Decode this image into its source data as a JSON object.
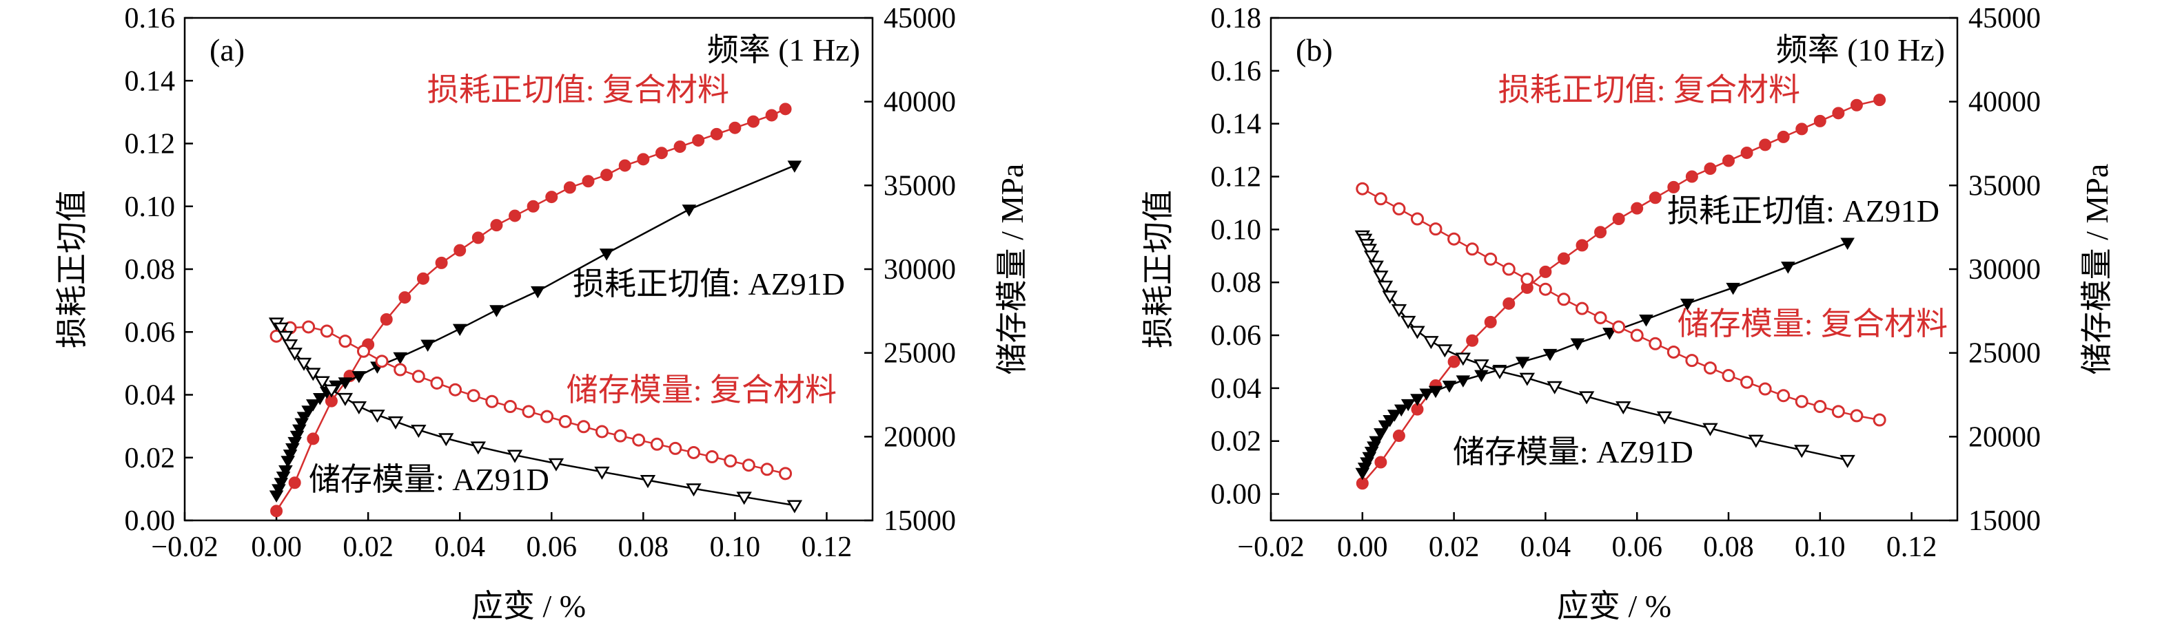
{
  "figure": {
    "x_label": "应变 / %",
    "y_left_label": "损耗正切值",
    "y_right_label": "储存模量 / MPa"
  },
  "colors": {
    "axis": "#000000",
    "composite": "#d62f2f",
    "az91d": "#000000"
  },
  "chart_data": [
    {
      "type": "line",
      "panel_label": "(a)",
      "frequency_label": "频率 (1 Hz)",
      "xlabel": "应变 / %",
      "ylabel": "损耗正切值",
      "y2label": "储存模量 / MPa",
      "xlim": [
        -0.02,
        0.13
      ],
      "ylim": [
        0,
        0.16
      ],
      "y2lim": [
        15000,
        45000
      ],
      "x_ticks": [
        "−0.02",
        "0.00",
        "0.02",
        "0.04",
        "0.06",
        "0.08",
        "0.10",
        "0.12"
      ],
      "y_ticks": [
        "0.00",
        "0.02",
        "0.04",
        "0.06",
        "0.08",
        "0.10",
        "0.12",
        "0.14",
        "0.16"
      ],
      "y2_ticks": [
        "15000",
        "20000",
        "25000",
        "30000",
        "35000",
        "40000",
        "45000"
      ],
      "series": [
        {
          "name": "损耗正切值: 复合材料",
          "axis": "left",
          "marker": "filled-circle",
          "color": "#d62f2f",
          "x": [
            0.0,
            0.004,
            0.008,
            0.012,
            0.016,
            0.02,
            0.024,
            0.028,
            0.032,
            0.036,
            0.04,
            0.044,
            0.048,
            0.052,
            0.056,
            0.06,
            0.064,
            0.068,
            0.072,
            0.076,
            0.08,
            0.084,
            0.088,
            0.092,
            0.096,
            0.1,
            0.104,
            0.108,
            0.111
          ],
          "y": [
            0.003,
            0.012,
            0.026,
            0.038,
            0.046,
            0.056,
            0.064,
            0.071,
            0.077,
            0.082,
            0.086,
            0.09,
            0.094,
            0.097,
            0.1,
            0.103,
            0.106,
            0.108,
            0.11,
            0.113,
            0.115,
            0.117,
            0.119,
            0.121,
            0.123,
            0.125,
            0.127,
            0.129,
            0.131
          ]
        },
        {
          "name": "损耗正切值: AZ91D",
          "axis": "left",
          "marker": "filled-triangle-down",
          "color": "#000000",
          "x": [
            0.0,
            0.0005,
            0.001,
            0.0015,
            0.002,
            0.0025,
            0.003,
            0.0035,
            0.004,
            0.0045,
            0.005,
            0.0055,
            0.006,
            0.007,
            0.008,
            0.0095,
            0.011,
            0.013,
            0.015,
            0.018,
            0.022,
            0.027,
            0.033,
            0.04,
            0.048,
            0.057,
            0.072,
            0.09,
            0.113
          ],
          "y": [
            0.008,
            0.01,
            0.012,
            0.014,
            0.016,
            0.019,
            0.021,
            0.023,
            0.025,
            0.027,
            0.029,
            0.031,
            0.033,
            0.035,
            0.037,
            0.039,
            0.041,
            0.043,
            0.044,
            0.046,
            0.049,
            0.052,
            0.056,
            0.061,
            0.067,
            0.073,
            0.085,
            0.099,
            0.113
          ]
        },
        {
          "name": "储存模量: 复合材料",
          "axis": "right",
          "marker": "open-circle",
          "color": "#d62f2f",
          "x": [
            0.0,
            0.003,
            0.007,
            0.011,
            0.015,
            0.019,
            0.023,
            0.027,
            0.031,
            0.035,
            0.039,
            0.043,
            0.047,
            0.051,
            0.055,
            0.059,
            0.063,
            0.067,
            0.071,
            0.075,
            0.079,
            0.083,
            0.087,
            0.091,
            0.095,
            0.099,
            0.103,
            0.107,
            0.111
          ],
          "y": [
            26000,
            26500,
            26550,
            26300,
            25700,
            25100,
            24500,
            24000,
            23600,
            23200,
            22800,
            22450,
            22100,
            21800,
            21500,
            21200,
            20900,
            20600,
            20300,
            20050,
            19800,
            19550,
            19300,
            19050,
            18800,
            18550,
            18300,
            18050,
            17800
          ]
        },
        {
          "name": "储存模量: AZ91D",
          "axis": "right",
          "marker": "open-triangle-down",
          "color": "#000000",
          "x": [
            0.0,
            0.001,
            0.002,
            0.003,
            0.004,
            0.006,
            0.008,
            0.01,
            0.012,
            0.015,
            0.018,
            0.022,
            0.026,
            0.031,
            0.037,
            0.044,
            0.052,
            0.061,
            0.071,
            0.081,
            0.091,
            0.102,
            0.113
          ],
          "y": [
            26800,
            26500,
            26000,
            25500,
            25000,
            24400,
            23800,
            23300,
            22800,
            22300,
            21800,
            21300,
            20900,
            20400,
            19900,
            19400,
            18900,
            18400,
            17900,
            17400,
            16900,
            16400,
            15900
          ]
        }
      ],
      "annotations": [
        "损耗正切值: 复合材料",
        "损耗正切值: AZ91D",
        "储存模量: 复合材料",
        "储存模量: AZ91D"
      ]
    },
    {
      "type": "line",
      "panel_label": "(b)",
      "frequency_label": "频率 (10 Hz)",
      "xlabel": "应变 / %",
      "ylabel": "损耗正切值",
      "y2label": "储存模量 / MPa",
      "xlim": [
        -0.02,
        0.13
      ],
      "ylim": [
        -0.01,
        0.18
      ],
      "y2lim": [
        15000,
        45000
      ],
      "x_ticks": [
        "−0.02",
        "0.00",
        "0.02",
        "0.04",
        "0.06",
        "0.08",
        "0.10",
        "0.12"
      ],
      "y_ticks": [
        "0.00",
        "0.02",
        "0.04",
        "0.06",
        "0.08",
        "0.10",
        "0.12",
        "0.14",
        "0.16",
        "0.18"
      ],
      "y2_ticks": [
        "15000",
        "20000",
        "25000",
        "30000",
        "35000",
        "40000",
        "45000"
      ],
      "series": [
        {
          "name": "损耗正切值: 复合材料",
          "axis": "left",
          "marker": "filled-circle",
          "color": "#d62f2f",
          "x": [
            0.0,
            0.004,
            0.008,
            0.012,
            0.016,
            0.02,
            0.024,
            0.028,
            0.032,
            0.036,
            0.04,
            0.044,
            0.048,
            0.052,
            0.056,
            0.06,
            0.064,
            0.068,
            0.072,
            0.076,
            0.08,
            0.084,
            0.088,
            0.092,
            0.096,
            0.1,
            0.104,
            0.108,
            0.113
          ],
          "y": [
            0.004,
            0.012,
            0.022,
            0.032,
            0.041,
            0.05,
            0.058,
            0.065,
            0.072,
            0.078,
            0.084,
            0.089,
            0.094,
            0.099,
            0.104,
            0.108,
            0.112,
            0.116,
            0.12,
            0.123,
            0.126,
            0.129,
            0.132,
            0.135,
            0.138,
            0.141,
            0.144,
            0.147,
            0.149
          ]
        },
        {
          "name": "损耗正切值: AZ91D",
          "axis": "left",
          "marker": "filled-triangle-down",
          "color": "#000000",
          "x": [
            0.0,
            0.0005,
            0.001,
            0.0015,
            0.002,
            0.0025,
            0.003,
            0.004,
            0.005,
            0.006,
            0.007,
            0.0085,
            0.01,
            0.012,
            0.014,
            0.016,
            0.019,
            0.022,
            0.026,
            0.03,
            0.035,
            0.041,
            0.047,
            0.054,
            0.062,
            0.071,
            0.081,
            0.093,
            0.106
          ],
          "y": [
            0.008,
            0.01,
            0.012,
            0.014,
            0.016,
            0.018,
            0.02,
            0.023,
            0.026,
            0.028,
            0.03,
            0.032,
            0.034,
            0.036,
            0.038,
            0.039,
            0.041,
            0.043,
            0.045,
            0.047,
            0.05,
            0.053,
            0.057,
            0.061,
            0.066,
            0.072,
            0.078,
            0.086,
            0.095
          ]
        },
        {
          "name": "储存模量: 复合材料",
          "axis": "right",
          "marker": "open-circle",
          "color": "#d62f2f",
          "x": [
            0.0,
            0.004,
            0.008,
            0.012,
            0.016,
            0.02,
            0.024,
            0.028,
            0.032,
            0.036,
            0.04,
            0.044,
            0.048,
            0.052,
            0.056,
            0.06,
            0.064,
            0.068,
            0.072,
            0.076,
            0.08,
            0.084,
            0.088,
            0.092,
            0.096,
            0.1,
            0.104,
            0.108,
            0.113
          ],
          "y": [
            34800,
            34200,
            33600,
            33000,
            32400,
            31800,
            31200,
            30600,
            30000,
            29400,
            28800,
            28200,
            27650,
            27100,
            26550,
            26050,
            25550,
            25050,
            24550,
            24100,
            23650,
            23250,
            22850,
            22450,
            22100,
            21800,
            21500,
            21250,
            21000
          ]
        },
        {
          "name": "储存模量: AZ91D",
          "axis": "right",
          "marker": "open-triangle-down",
          "color": "#000000",
          "x": [
            0.0,
            0.0005,
            0.001,
            0.0015,
            0.002,
            0.003,
            0.004,
            0.005,
            0.006,
            0.008,
            0.01,
            0.012,
            0.015,
            0.018,
            0.022,
            0.026,
            0.03,
            0.036,
            0.042,
            0.049,
            0.057,
            0.066,
            0.076,
            0.086,
            0.096,
            0.106
          ],
          "y": [
            32000,
            31800,
            31500,
            31200,
            30800,
            30200,
            29600,
            29000,
            28400,
            27600,
            26900,
            26300,
            25700,
            25200,
            24700,
            24300,
            23900,
            23500,
            23000,
            22400,
            21800,
            21200,
            20500,
            19800,
            19200,
            18600
          ]
        }
      ],
      "annotations": [
        "损耗正切值: 复合材料",
        "损耗正切值: AZ91D",
        "储存模量: 复合材料",
        "储存模量: AZ91D"
      ]
    }
  ]
}
